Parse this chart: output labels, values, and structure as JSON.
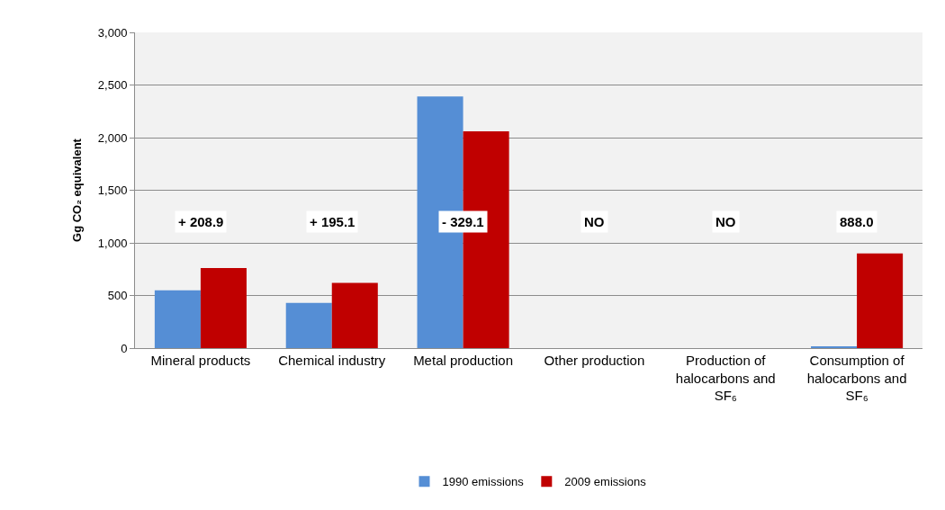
{
  "chart_data": {
    "type": "bar",
    "ylabel": "Gg CO₂ equivalent",
    "categories": [
      "Mineral products",
      "Chemical industry",
      "Metal production",
      "Other production",
      "Production of halocarbons and SF₆",
      "Consumption of halocarbons and SF₆"
    ],
    "series": [
      {
        "name": "1990 emissions",
        "color": "#558ed5",
        "values": [
          550,
          430,
          2390,
          0,
          0,
          10
        ]
      },
      {
        "name": "2009 emissions",
        "color": "#c00000",
        "values": [
          760,
          620,
          2060,
          0,
          0,
          900
        ]
      }
    ],
    "ylim": [
      0,
      3000
    ],
    "yticks": [
      {
        "value": 0,
        "label": "0"
      },
      {
        "value": 500,
        "label": "500"
      },
      {
        "value": 1000,
        "label": "1,000"
      },
      {
        "value": 1500,
        "label": "1,500"
      },
      {
        "value": 2000,
        "label": "2,000"
      },
      {
        "value": 2500,
        "label": "2,500"
      },
      {
        "value": 3000,
        "label": "3,000"
      }
    ],
    "grid": "y",
    "legend": "bottom",
    "annotations": [
      "+ 208.9",
      "+ 195.1",
      "- 329.1",
      "NO",
      "NO",
      "888.0"
    ]
  }
}
